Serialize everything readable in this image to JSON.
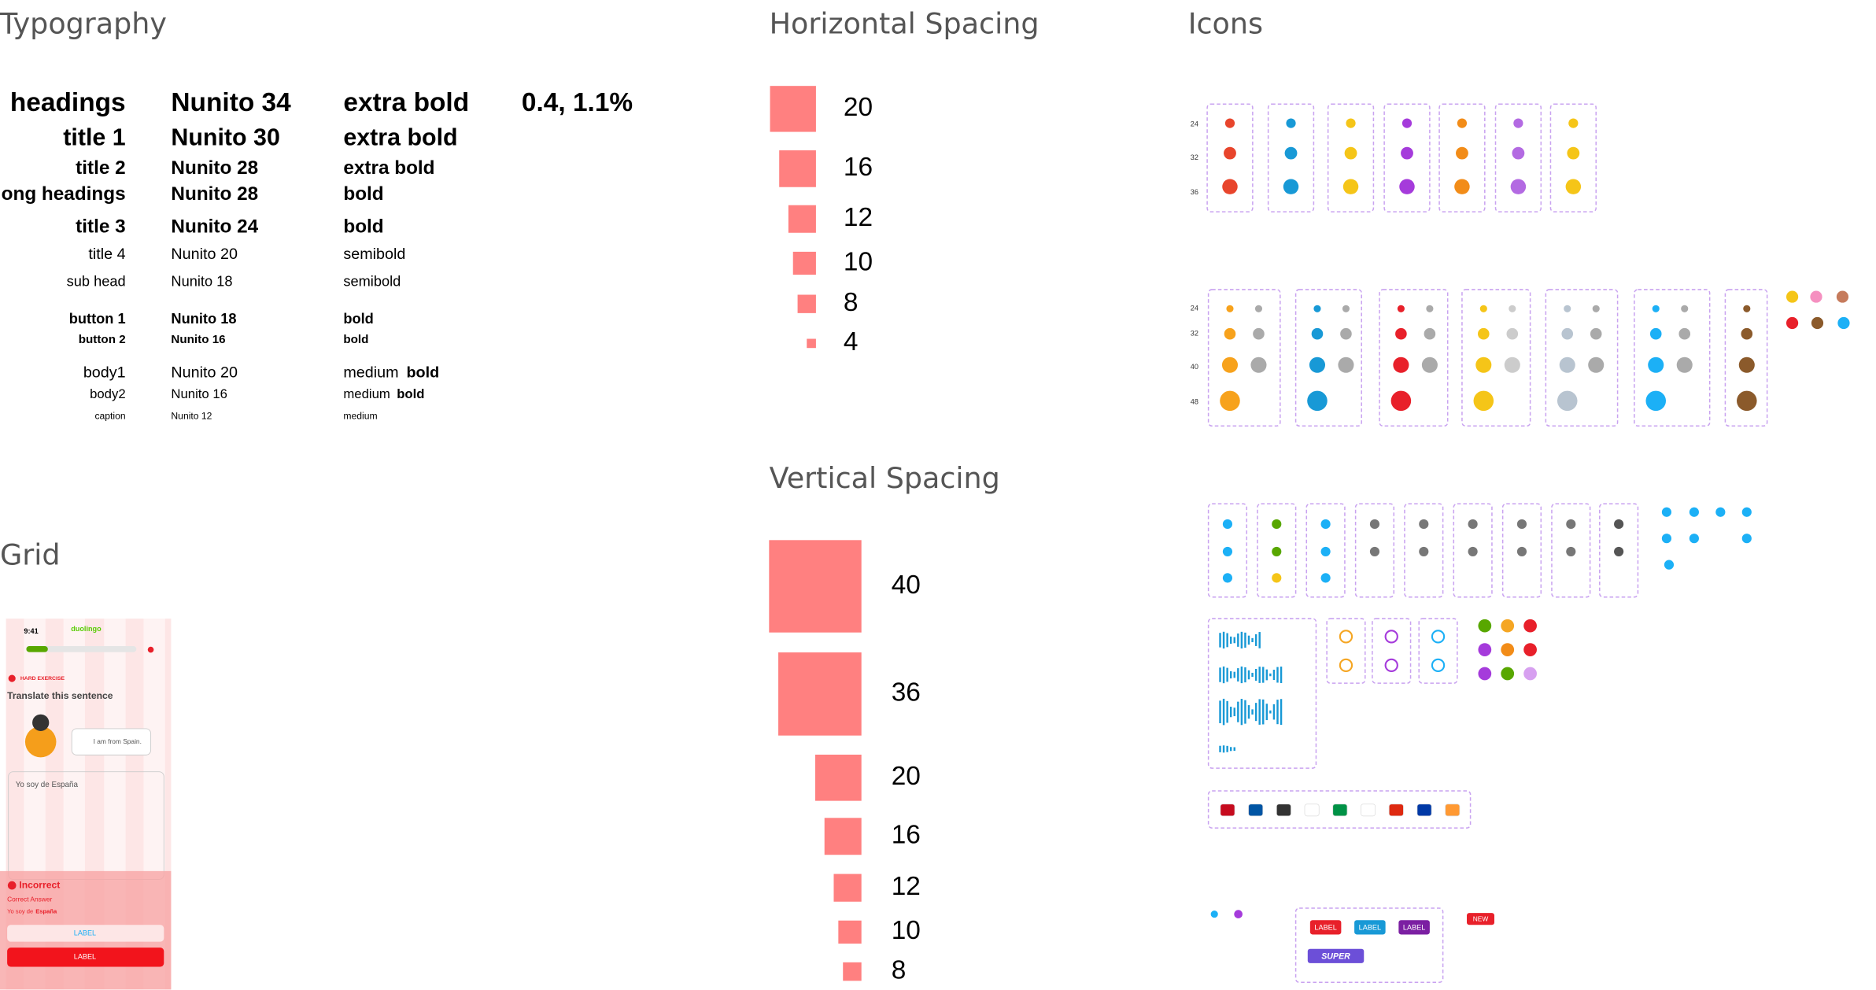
{
  "sections": {
    "typography": "Typography",
    "horizontal_spacing": "Horizontal Spacing",
    "icons": "Icons",
    "grid": "Grid",
    "vertical_spacing": "Vertical Spacing"
  },
  "typography": {
    "letter_spacing": "0.4, 1.1%",
    "rows": [
      {
        "name": "headings",
        "font": "Nunito 34",
        "weight": "extra bold"
      },
      {
        "name": "title 1",
        "font": "Nunito 30",
        "weight": "extra bold"
      },
      {
        "name": "title 2",
        "font": "Nunito 28",
        "weight": "extra bold"
      },
      {
        "name": "long headings",
        "font": "Nunito 28",
        "weight": "bold"
      },
      {
        "name": "title 3",
        "font": "Nunito 24",
        "weight": "bold"
      },
      {
        "name": "title 4",
        "font": "Nunito 20",
        "weight": "semibold"
      },
      {
        "name": "sub head",
        "font": "Nunito 18",
        "weight": "semibold"
      },
      {
        "name": "button 1",
        "font": "Nunito 18",
        "weight": "bold"
      },
      {
        "name": "button 2",
        "font": "Nunito 16",
        "weight": "bold"
      },
      {
        "name": "body1",
        "font": "Nunito 20",
        "weight": "medium",
        "weight2": "bold"
      },
      {
        "name": "body2",
        "font": "Nunito 16",
        "weight": "medium",
        "weight2": "bold"
      },
      {
        "name": "caption",
        "font": "Nunito 12",
        "weight": "medium"
      }
    ]
  },
  "horizontal_spacing": [
    20,
    16,
    12,
    10,
    8,
    4
  ],
  "vertical_spacing": [
    40,
    36,
    20,
    16,
    12,
    10,
    8
  ],
  "icons": {
    "sizes_a": [
      24,
      32,
      36
    ],
    "sizes_b": [
      24,
      32,
      40,
      48
    ],
    "badges": [
      "LABEL",
      "LABEL",
      "LABEL"
    ],
    "new_badge": "NEW",
    "super_badge": "SUPER"
  },
  "grid_mockup": {
    "time": "9:41",
    "logo": "duolingo",
    "tag": "HARD EXERCISE",
    "prompt": "Translate this sentence",
    "bubble": "I am from Spain.",
    "input": "Yo soy de España",
    "result": "Incorrect",
    "answer_label": "Correct Answer",
    "answer_prefix": "Yo soy de",
    "answer_bold": "España",
    "secondary_button": "LABEL",
    "primary_button": "LABEL"
  }
}
